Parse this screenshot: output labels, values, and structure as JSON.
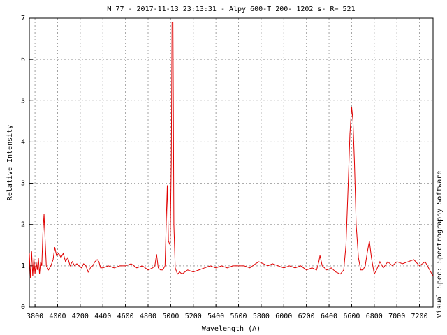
{
  "chart_data": {
    "type": "line",
    "title": "M 77 - 2017-11-13 23:13:31 - Alpy 600-T 200- 1202 s- R= 521",
    "x_label": "Wavelength (A)",
    "y_label": "Relative Intensity",
    "side_note": "Visual Spec: Spectrography Software",
    "x": [
      3750,
      3760,
      3770,
      3780,
      3790,
      3800,
      3810,
      3820,
      3830,
      3840,
      3850,
      3860,
      3870,
      3880,
      3890,
      3900,
      3920,
      3940,
      3960,
      3975,
      3990,
      4010,
      4030,
      4050,
      4070,
      4090,
      4110,
      4130,
      4150,
      4170,
      4190,
      4210,
      4230,
      4250,
      4270,
      4290,
      4310,
      4330,
      4350,
      4365,
      4380,
      4400,
      4450,
      4500,
      4550,
      4600,
      4650,
      4700,
      4750,
      4800,
      4840,
      4860,
      4875,
      4890,
      4910,
      4930,
      4950,
      4962,
      4970,
      4980,
      4995,
      5005,
      5012,
      5020,
      5028,
      5040,
      5060,
      5080,
      5100,
      5150,
      5200,
      5250,
      5300,
      5350,
      5400,
      5450,
      5500,
      5550,
      5600,
      5650,
      5700,
      5750,
      5780,
      5820,
      5860,
      5900,
      5950,
      6000,
      6050,
      6100,
      6150,
      6200,
      6250,
      6290,
      6310,
      6320,
      6340,
      6380,
      6420,
      6460,
      6500,
      6530,
      6550,
      6570,
      6585,
      6600,
      6612,
      6625,
      6640,
      6660,
      6680,
      6700,
      6720,
      6740,
      6757,
      6775,
      6800,
      6820,
      6850,
      6880,
      6920,
      6960,
      7000,
      7050,
      7100,
      7150,
      7200,
      7250,
      7300,
      7320
    ],
    "series": [
      {
        "name": "M 77",
        "color": "#e00000",
        "values": [
          1.3,
          0.7,
          1.35,
          0.75,
          1.2,
          0.8,
          1.1,
          0.9,
          1.2,
          0.8,
          1.1,
          1.0,
          1.8,
          2.25,
          1.6,
          1.0,
          0.9,
          1.0,
          1.15,
          1.45,
          1.25,
          1.3,
          1.2,
          1.3,
          1.1,
          1.2,
          1.0,
          1.1,
          1.0,
          1.05,
          1.0,
          0.95,
          1.05,
          1.0,
          0.85,
          0.95,
          1.0,
          1.1,
          1.15,
          1.1,
          0.95,
          0.95,
          1.0,
          0.95,
          1.0,
          1.0,
          1.05,
          0.95,
          1.0,
          0.9,
          0.95,
          1.0,
          1.28,
          0.95,
          0.9,
          0.9,
          1.0,
          2.2,
          2.95,
          1.6,
          1.5,
          3.5,
          6.9,
          6.9,
          2.0,
          0.95,
          0.8,
          0.85,
          0.8,
          0.9,
          0.85,
          0.9,
          0.95,
          1.0,
          0.95,
          1.0,
          0.95,
          1.0,
          1.0,
          1.0,
          0.95,
          1.05,
          1.1,
          1.05,
          1.0,
          1.05,
          1.0,
          0.95,
          1.0,
          0.95,
          1.0,
          0.9,
          0.95,
          0.9,
          1.1,
          1.25,
          1.0,
          0.9,
          0.95,
          0.85,
          0.8,
          0.9,
          1.5,
          3.0,
          4.2,
          4.85,
          4.5,
          3.5,
          2.0,
          1.2,
          0.9,
          0.9,
          1.0,
          1.35,
          1.6,
          1.2,
          0.8,
          0.9,
          1.1,
          0.95,
          1.1,
          1.0,
          1.1,
          1.05,
          1.1,
          1.15,
          1.0,
          1.1,
          0.85,
          0.75
        ]
      }
    ],
    "xlim": [
      3750,
      7320
    ],
    "ylim": [
      0,
      7
    ],
    "xticks": [
      3800,
      4000,
      4200,
      4400,
      4600,
      4800,
      5000,
      5200,
      5400,
      5600,
      5800,
      6000,
      6200,
      6400,
      6600,
      6800,
      7000,
      7200
    ],
    "yticks": [
      0,
      1,
      2,
      3,
      4,
      5,
      6,
      7
    ],
    "grid": true
  }
}
